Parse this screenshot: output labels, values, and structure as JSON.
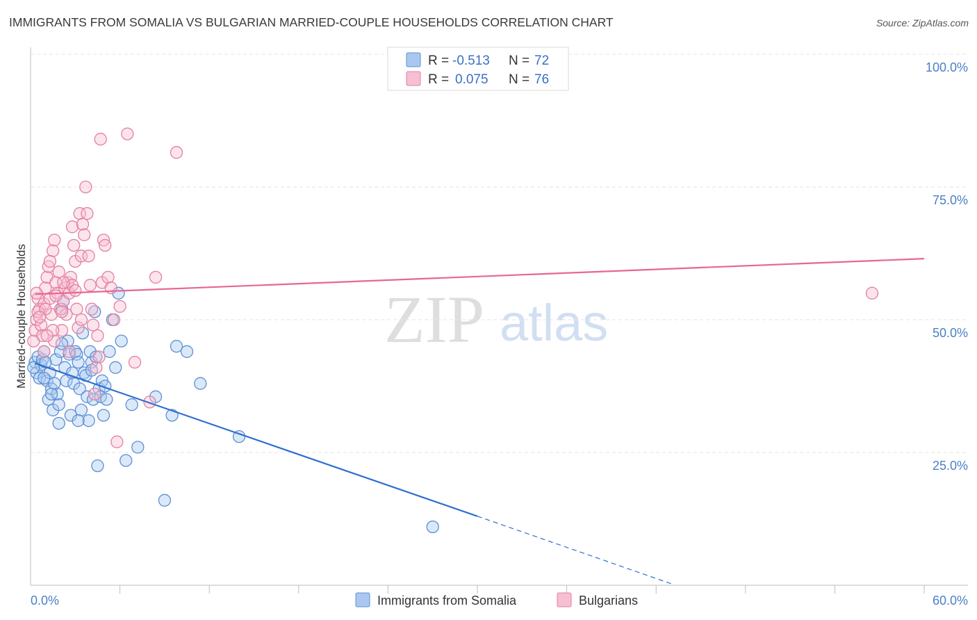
{
  "chart_data": {
    "type": "scatter",
    "title": "IMMIGRANTS FROM SOMALIA VS BULGARIAN MARRIED-COUPLE HOUSEHOLDS CORRELATION CHART",
    "source": "Source: ZipAtlas.com",
    "ylabel": "Married-couple Households",
    "xlim": [
      0,
      60
    ],
    "ylim": [
      0,
      100
    ],
    "x_tick_labels": {
      "left": "0.0%",
      "right": "60.0%"
    },
    "y_ticks": [
      {
        "value": 100,
        "label": "100.0%"
      },
      {
        "value": 75,
        "label": "75.0%"
      },
      {
        "value": 50,
        "label": "50.0%"
      },
      {
        "value": 25,
        "label": "25.0%"
      }
    ],
    "watermark": {
      "zip": "ZIP",
      "atlas": "atlas"
    },
    "legend": {
      "r_label": "R =",
      "n_label": "N =",
      "entries": [
        {
          "r": "-0.513",
          "n": "72"
        },
        {
          "r": "0.075",
          "n": "76"
        }
      ]
    },
    "series": [
      {
        "name": "Immigrants from Somalia",
        "fill": "#aac8ef",
        "stroke": "#5b8fd6",
        "line_color": "#2e6fd0",
        "trend": {
          "x0": 0.3,
          "y0": 41.8,
          "x1": 30.0,
          "y1": 13.0,
          "dash_x1": 43.0,
          "dash_y1": 0.3
        },
        "points": [
          [
            0.3,
            42
          ],
          [
            0.4,
            40
          ],
          [
            0.5,
            43
          ],
          [
            0.6,
            39
          ],
          [
            0.7,
            41.5
          ],
          [
            0.8,
            42.5
          ],
          [
            0.9,
            44
          ],
          [
            1.0,
            42
          ],
          [
            1.1,
            38.5
          ],
          [
            1.2,
            35
          ],
          [
            1.3,
            40
          ],
          [
            1.4,
            37
          ],
          [
            1.5,
            33
          ],
          [
            1.6,
            38
          ],
          [
            1.7,
            42.5
          ],
          [
            1.8,
            36
          ],
          [
            1.9,
            34
          ],
          [
            2.0,
            44
          ],
          [
            2.1,
            52
          ],
          [
            2.2,
            53.5
          ],
          [
            2.3,
            41
          ],
          [
            2.4,
            38.5
          ],
          [
            2.5,
            46
          ],
          [
            2.6,
            43.5
          ],
          [
            2.7,
            32
          ],
          [
            2.8,
            40
          ],
          [
            2.9,
            38
          ],
          [
            3.0,
            44
          ],
          [
            3.1,
            43.5
          ],
          [
            3.2,
            42
          ],
          [
            3.3,
            37
          ],
          [
            3.4,
            33
          ],
          [
            3.5,
            47.5
          ],
          [
            3.6,
            40
          ],
          [
            3.7,
            39.5
          ],
          [
            3.8,
            35.5
          ],
          [
            3.9,
            31
          ],
          [
            4.0,
            44
          ],
          [
            4.1,
            42
          ],
          [
            4.2,
            35
          ],
          [
            4.3,
            51.5
          ],
          [
            4.4,
            43
          ],
          [
            4.5,
            22.5
          ],
          [
            4.6,
            37
          ],
          [
            4.7,
            35.5
          ],
          [
            4.8,
            38.5
          ],
          [
            4.9,
            32
          ],
          [
            5.0,
            37.5
          ],
          [
            5.1,
            35
          ],
          [
            5.3,
            44
          ],
          [
            5.5,
            50
          ],
          [
            5.7,
            41
          ],
          [
            5.9,
            55
          ],
          [
            6.1,
            46
          ],
          [
            6.4,
            23.5
          ],
          [
            6.8,
            34
          ],
          [
            7.2,
            26
          ],
          [
            8.4,
            35.5
          ],
          [
            9.0,
            16
          ],
          [
            9.5,
            32
          ],
          [
            9.8,
            45
          ],
          [
            10.5,
            44
          ],
          [
            11.4,
            38
          ],
          [
            14.0,
            28
          ],
          [
            27.0,
            11
          ],
          [
            3.2,
            31
          ],
          [
            1.4,
            36
          ],
          [
            2.1,
            45.5
          ],
          [
            1.9,
            30.5
          ],
          [
            4.1,
            40.5
          ],
          [
            0.2,
            41
          ],
          [
            0.9,
            39
          ]
        ]
      },
      {
        "name": "Bulgarians",
        "fill": "#f7bfd2",
        "stroke": "#e27fa2",
        "line_color": "#e8668f",
        "trend": {
          "x0": 0.3,
          "y0": 54.8,
          "x1": 60.0,
          "y1": 61.5
        },
        "points": [
          [
            0.2,
            46
          ],
          [
            0.3,
            48
          ],
          [
            0.4,
            50
          ],
          [
            0.5,
            54
          ],
          [
            0.6,
            52
          ],
          [
            0.7,
            49
          ],
          [
            0.8,
            47
          ],
          [
            0.9,
            53
          ],
          [
            1.0,
            56
          ],
          [
            1.1,
            58
          ],
          [
            1.2,
            60
          ],
          [
            1.3,
            54
          ],
          [
            1.4,
            51
          ],
          [
            1.5,
            63
          ],
          [
            1.6,
            65
          ],
          [
            1.7,
            57
          ],
          [
            1.8,
            55
          ],
          [
            1.9,
            59
          ],
          [
            2.0,
            52
          ],
          [
            2.1,
            48
          ],
          [
            2.2,
            53.5
          ],
          [
            2.3,
            56
          ],
          [
            2.4,
            51
          ],
          [
            2.5,
            57
          ],
          [
            2.6,
            55
          ],
          [
            2.7,
            58
          ],
          [
            2.8,
            67.5
          ],
          [
            2.9,
            64
          ],
          [
            3.0,
            61
          ],
          [
            3.1,
            52
          ],
          [
            3.2,
            48.5
          ],
          [
            3.3,
            70
          ],
          [
            3.4,
            62
          ],
          [
            3.5,
            68
          ],
          [
            3.6,
            66
          ],
          [
            3.7,
            75
          ],
          [
            3.8,
            70
          ],
          [
            3.9,
            62
          ],
          [
            4.0,
            56.5
          ],
          [
            4.1,
            52
          ],
          [
            4.2,
            49
          ],
          [
            4.3,
            36
          ],
          [
            4.4,
            41
          ],
          [
            4.5,
            47
          ],
          [
            4.6,
            43
          ],
          [
            4.7,
            84
          ],
          [
            4.8,
            57
          ],
          [
            4.9,
            65
          ],
          [
            5.0,
            64
          ],
          [
            5.2,
            58
          ],
          [
            5.4,
            56
          ],
          [
            5.6,
            50
          ],
          [
            5.8,
            27
          ],
          [
            6.0,
            52.5
          ],
          [
            6.5,
            85
          ],
          [
            7.0,
            42
          ],
          [
            8.0,
            34.5
          ],
          [
            8.4,
            58
          ],
          [
            9.8,
            81.5
          ],
          [
            2.6,
            44
          ],
          [
            2.1,
            51.5
          ],
          [
            1.6,
            46
          ],
          [
            1.3,
            61
          ],
          [
            0.9,
            44
          ],
          [
            0.5,
            51.5
          ],
          [
            0.4,
            55
          ],
          [
            1.0,
            52
          ],
          [
            1.7,
            54.5
          ],
          [
            2.8,
            56.5
          ],
          [
            3.4,
            50
          ],
          [
            1.5,
            48
          ],
          [
            2.2,
            57
          ],
          [
            0.6,
            50.5
          ],
          [
            1.1,
            47
          ],
          [
            56.5,
            55
          ],
          [
            3.0,
            55.5
          ]
        ]
      }
    ]
  }
}
